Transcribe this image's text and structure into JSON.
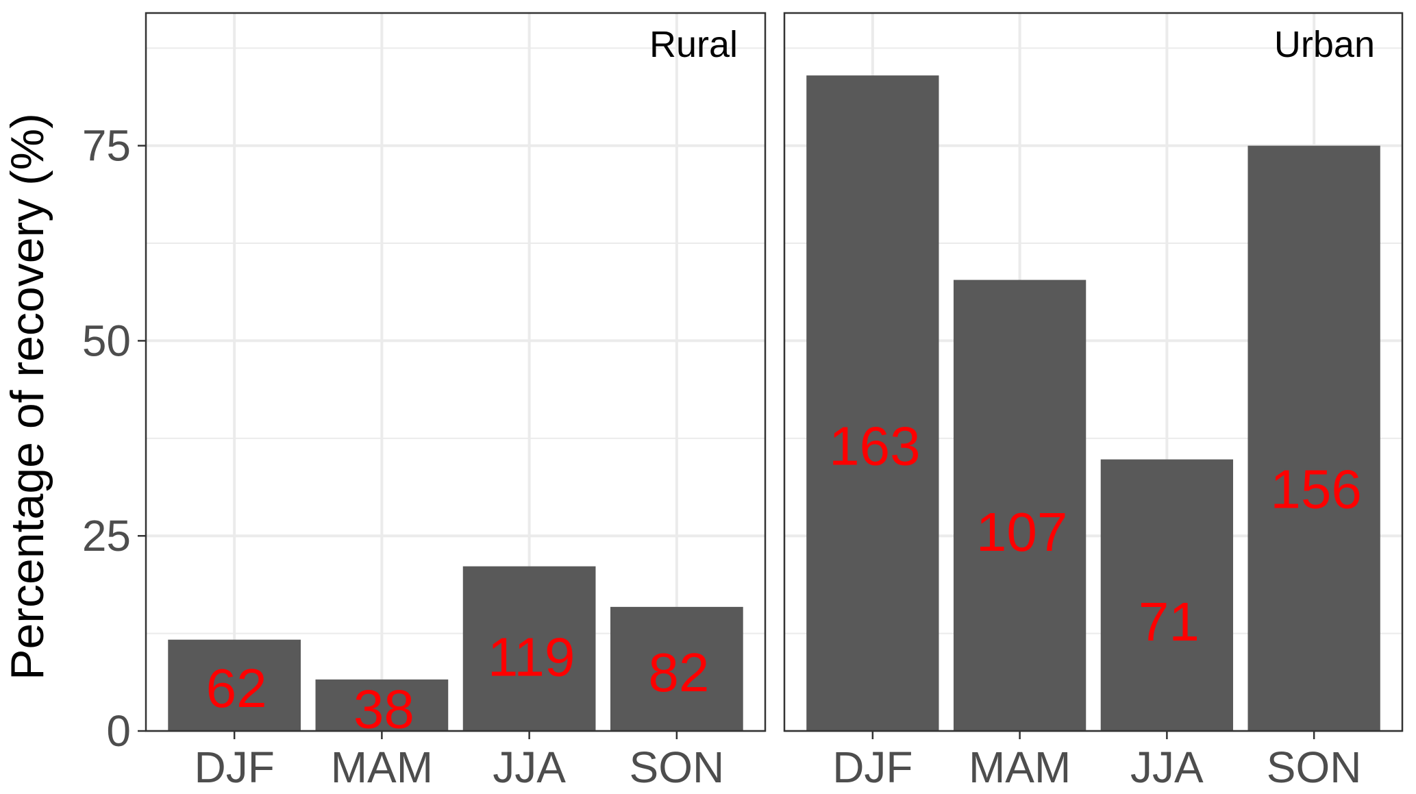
{
  "chart_data": {
    "type": "bar",
    "ylabel": "Percentage of recovery (%)",
    "xlabel": "",
    "ylim": [
      0,
      92
    ],
    "yticks": [
      0,
      25,
      50,
      75
    ],
    "grid": true,
    "colors": {
      "bar": "#595959",
      "bar_label": "#ff0000",
      "grid": "#ebebeb",
      "panel_border": "#333333",
      "tick_text": "#4d4d4d"
    },
    "categories": [
      "DJF",
      "MAM",
      "JJA",
      "SON"
    ],
    "panels": [
      {
        "label": "Rural",
        "values": [
          11.7,
          6.6,
          21.1,
          15.9
        ],
        "bar_labels": [
          "62",
          "38",
          "119",
          "82"
        ],
        "label_y": [
          5.5,
          2.8,
          9.5,
          7.5
        ]
      },
      {
        "label": "Urban",
        "values": [
          84,
          57.8,
          34.8,
          75
        ],
        "bar_labels": [
          "163",
          "107",
          "71",
          "156"
        ],
        "label_y": [
          36.5,
          25.5,
          14.0,
          31.0
        ]
      }
    ]
  }
}
